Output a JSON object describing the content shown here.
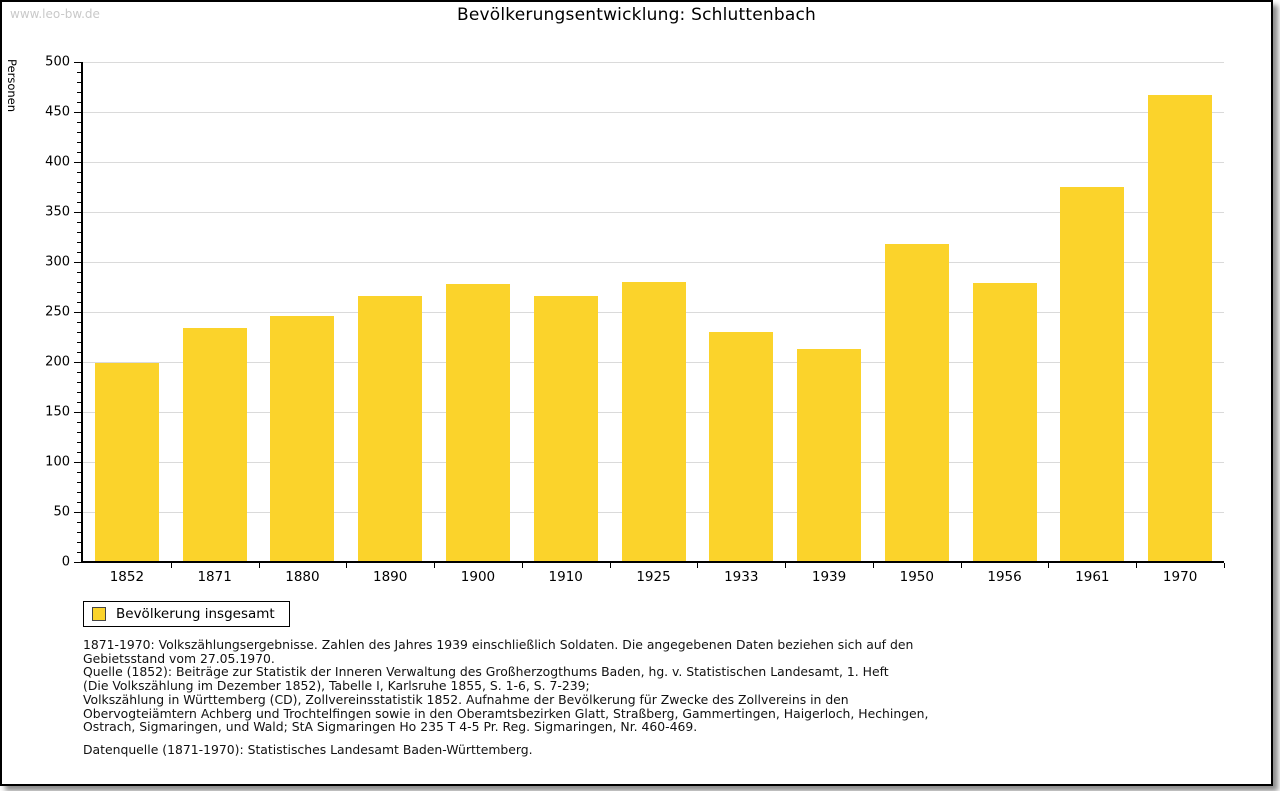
{
  "watermark": "www.leo-bw.de",
  "title": "Bevölkerungsentwicklung: Schluttenbach",
  "chart_data": {
    "type": "bar",
    "title": "Bevölkerungsentwicklung: Schluttenbach",
    "xlabel": "",
    "ylabel": "Personen",
    "categories": [
      "1852",
      "1871",
      "1880",
      "1890",
      "1900",
      "1910",
      "1925",
      "1933",
      "1939",
      "1950",
      "1956",
      "1961",
      "1970"
    ],
    "series": [
      {
        "name": "Bevölkerung insgesamt",
        "values": [
          199,
          234,
          246,
          266,
          278,
          266,
          280,
          230,
          213,
          318,
          279,
          375,
          467
        ]
      }
    ],
    "ylim": [
      0,
      500
    ],
    "yticks": [
      0,
      50,
      100,
      150,
      200,
      250,
      300,
      350,
      400,
      450,
      500
    ],
    "ytick_minor_step": 10,
    "grid": true,
    "legend_position": "bottom-left",
    "bar_color": "#fbd32b"
  },
  "legend": {
    "label": "Bevölkerung insgesamt",
    "swatch_color": "#fbd32b"
  },
  "footnotes": [
    "1871-1970: Volkszählungsergebnisse. Zahlen des Jahres 1939 einschließlich Soldaten. Die angegebenen Daten beziehen sich auf den",
    "Gebietsstand vom 27.05.1970.",
    "Quelle (1852): Beiträge zur Statistik der Inneren Verwaltung des Großherzogthums Baden, hg. v. Statistischen Landesamt, 1. Heft",
    "(Die Volkszählung im Dezember 1852), Tabelle I, Karlsruhe 1855, S. 1-6, S. 7-239;",
    "Volkszählung in Württemberg (CD), Zollvereinsstatistik 1852. Aufnahme der Bevölkerung für Zwecke des Zollvereins in den",
    "Obervogteiämtern Achberg und Trochtelfingen sowie in den Oberamtsbezirken Glatt, Straßberg, Gammertingen, Haigerloch, Hechingen,",
    "Ostrach, Sigmaringen, und Wald; StA Sigmaringen Ho 235 T 4-5 Pr. Reg. Sigmaringen, Nr. 460-469."
  ],
  "datasource": "Datenquelle (1871-1970): Statistisches Landesamt Baden-Württemberg.",
  "colors": {
    "bar": "#fbd32b",
    "grid": "#dadada",
    "axis": "#000000",
    "watermark": "#c9c9c9"
  }
}
